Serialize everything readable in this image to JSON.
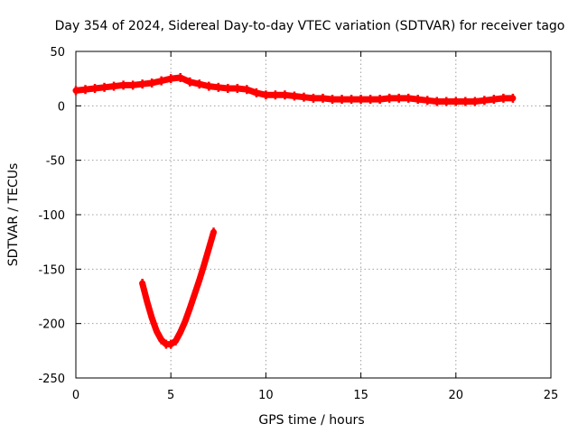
{
  "chart_data": {
    "type": "line",
    "title": "Day 354 of 2024, Sidereal Day-to-day VTEC variation (SDTVAR) for receiver tago",
    "xlabel": "GPS time / hours",
    "ylabel": "SDTVAR / TECUs",
    "xlim": [
      0,
      25
    ],
    "ylim": [
      -250,
      50
    ],
    "xticks": [
      0,
      5,
      10,
      15,
      20,
      25
    ],
    "yticks": [
      50,
      0,
      -50,
      -100,
      -150,
      -200,
      -250
    ],
    "grid": true,
    "legend": "none",
    "color": "#ff0000",
    "series": [
      {
        "name": "upper-trace",
        "x": [
          0,
          0.5,
          1,
          1.5,
          2,
          2.5,
          3,
          3.5,
          4,
          4.5,
          5,
          5.5,
          6,
          6.5,
          7,
          7.5,
          8,
          8.5,
          9,
          9.5,
          10,
          10.5,
          11,
          11.5,
          12,
          12.5,
          13,
          13.5,
          14,
          14.5,
          15,
          15.5,
          16,
          16.5,
          17,
          17.5,
          18,
          18.5,
          19,
          19.5,
          20,
          20.5,
          21,
          21.5,
          22,
          22.5,
          23
        ],
        "y": [
          14,
          15,
          16,
          17,
          18,
          19,
          19,
          20,
          21,
          23,
          25,
          26,
          22,
          20,
          18,
          17,
          16,
          16,
          15,
          12,
          10,
          10,
          10,
          9,
          8,
          7,
          7,
          6,
          6,
          6,
          6,
          6,
          6,
          7,
          7,
          7,
          6,
          5,
          4,
          4,
          4,
          4,
          4,
          5,
          6,
          7,
          7
        ]
      },
      {
        "name": "lower-trace",
        "x": [
          3.5,
          3.75,
          4,
          4.25,
          4.5,
          4.75,
          5,
          5.25,
          5.5,
          5.75,
          6,
          6.25,
          6.5,
          6.75,
          7,
          7.25
        ],
        "y": [
          -163,
          -180,
          -195,
          -207,
          -215,
          -219,
          -219,
          -216,
          -208,
          -198,
          -186,
          -173,
          -160,
          -146,
          -131,
          -116
        ]
      }
    ]
  }
}
